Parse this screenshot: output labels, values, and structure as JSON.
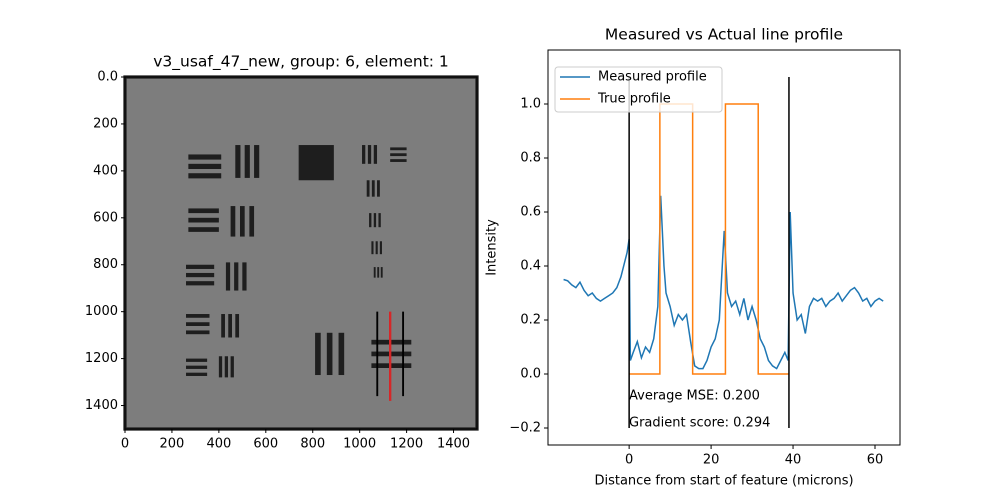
{
  "chart_data": [
    {
      "type": "image",
      "title": "v3_usaf_47_new, group: 6, element: 1",
      "xlim": [
        0,
        1500
      ],
      "ylim": [
        1500,
        0
      ],
      "xticks": [
        0,
        200,
        400,
        600,
        800,
        1000,
        1200,
        1400
      ],
      "yticks": [
        0,
        200,
        400,
        600,
        800,
        1000,
        1200,
        1400
      ]
    },
    {
      "type": "line",
      "title": "Measured vs Actual line profile",
      "xlabel": "Distance from start of feature (microns)",
      "ylabel": "Intensity",
      "xlim": [
        -19.8,
        66.1
      ],
      "ylim": [
        -0.263,
        1.2
      ],
      "xticks": [
        0,
        20,
        40,
        60
      ],
      "yticks": [
        -0.2,
        0.0,
        0.2,
        0.4,
        0.6,
        0.8,
        1.0
      ],
      "legend": "upper left",
      "series": [
        {
          "name": "Measured profile",
          "color": "#1f77b4",
          "x": [
            -16,
            -15,
            -14,
            -13,
            -12,
            -11,
            -10,
            -9,
            -8,
            -7,
            -6,
            -5,
            -4,
            -3,
            -2,
            -1,
            -0.5,
            0,
            0.3,
            1,
            2,
            3,
            4,
            5,
            6,
            7,
            7.7,
            8.5,
            9,
            10,
            11,
            12,
            13,
            14,
            15,
            16,
            17,
            18,
            19,
            20,
            21,
            22,
            23.2,
            24,
            25,
            26,
            27,
            28,
            29,
            30,
            31,
            32,
            33,
            34,
            35,
            36,
            37,
            38,
            38.8,
            39.3,
            40,
            41,
            42,
            43,
            44,
            45,
            46,
            47,
            48,
            49,
            50,
            51,
            52,
            53,
            54,
            55,
            56,
            57,
            58,
            59,
            60,
            61,
            62
          ],
          "values": [
            0.35,
            0.345,
            0.33,
            0.32,
            0.34,
            0.31,
            0.29,
            0.3,
            0.28,
            0.27,
            0.28,
            0.29,
            0.3,
            0.32,
            0.36,
            0.42,
            0.45,
            0.5,
            0.05,
            0.08,
            0.12,
            0.06,
            0.1,
            0.08,
            0.13,
            0.25,
            0.66,
            0.4,
            0.3,
            0.25,
            0.18,
            0.22,
            0.2,
            0.22,
            0.12,
            0.03,
            0.02,
            0.02,
            0.05,
            0.1,
            0.13,
            0.2,
            0.53,
            0.3,
            0.25,
            0.27,
            0.22,
            0.28,
            0.2,
            0.25,
            0.2,
            0.13,
            0.1,
            0.05,
            0.03,
            0.02,
            0.05,
            0.08,
            0.05,
            0.6,
            0.3,
            0.2,
            0.22,
            0.15,
            0.25,
            0.28,
            0.27,
            0.28,
            0.25,
            0.27,
            0.28,
            0.3,
            0.27,
            0.29,
            0.31,
            0.32,
            0.3,
            0.27,
            0.28,
            0.25,
            0.27,
            0.28,
            0.27
          ]
        },
        {
          "name": "True profile",
          "color": "#ff7f0e",
          "x": [
            0,
            7.5,
            7.5,
            15.5,
            15.5,
            23.5,
            23.5,
            31.5,
            31.5,
            39
          ],
          "values": [
            0,
            0,
            1,
            1,
            0,
            0,
            1,
            1,
            0,
            0
          ]
        }
      ],
      "vlines": {
        "x": [
          0,
          39
        ],
        "ymin": -0.2,
        "ymax": 1.1,
        "color": "#000000"
      },
      "annotations": [
        "Average MSE: 0.200",
        "Gradient score: 0.294"
      ]
    }
  ]
}
